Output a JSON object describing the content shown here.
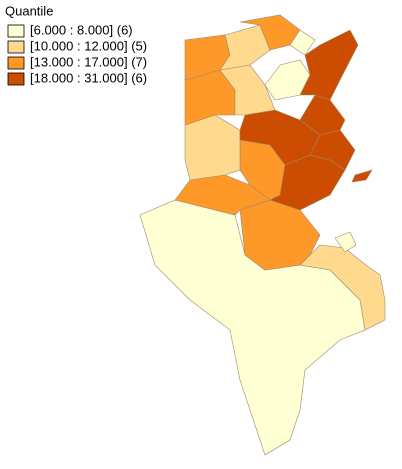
{
  "legend": {
    "title": "Quantile",
    "classes": [
      {
        "label": "[6.000 : 8.000] (6)",
        "color": "#ffffd4"
      },
      {
        "label": "[10.000 : 12.000] (5)",
        "color": "#fed98e"
      },
      {
        "label": "[13.000 : 17.000] (7)",
        "color": "#fe9929"
      },
      {
        "label": "[18.000 : 31.000] (6)",
        "color": "#cc4c02"
      }
    ]
  }
}
